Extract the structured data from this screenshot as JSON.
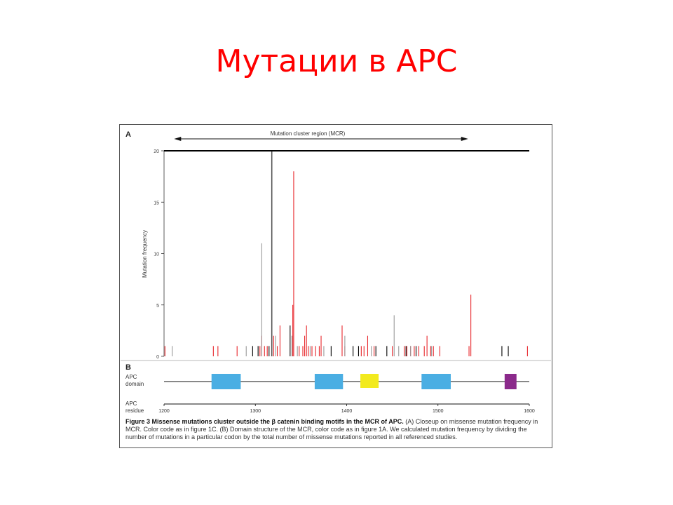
{
  "slide": {
    "title": "Мутации в APC"
  },
  "figure": {
    "panel_a_label": "A",
    "panel_b_label": "B",
    "mcr_label": "Mutation cluster region (MCR)",
    "domain_row_label": [
      "APC",
      "domain"
    ],
    "residue_row_label": [
      "APC",
      "residue"
    ],
    "caption_bold": "Figure 3 Missense mutations cluster outside the β catenin binding motifs in the MCR of APC.",
    "caption_text": " (A) Closeup on missense mutation frequency in MCR. Color code as in figure 1C. (B) Domain structure of the MCR, color code as in figure 1A. We calculated mutation frequency by dividing the number of mutations in a particular codon by the total number of missense mutations reported in all referenced studies."
  },
  "colors": {
    "title": "#ff0000",
    "red": "#e8262b",
    "gray": "#999999",
    "dark": "#555555",
    "black": "#000000",
    "blue": "#4aaee3",
    "yellow": "#f2ea1e",
    "purple": "#8b2a8b"
  },
  "chart_data": {
    "type": "bar",
    "ylabel": "Mutation frequency",
    "xlim": [
      1200,
      1600
    ],
    "ylim": [
      0,
      20
    ],
    "yticks": [
      0,
      5,
      10,
      15,
      20
    ],
    "xticks": [
      1200,
      1300,
      1400,
      1500,
      1600
    ],
    "series": [
      {
        "color": "red",
        "points": [
          [
            1201,
            1
          ],
          [
            1254,
            1
          ],
          [
            1259,
            1
          ],
          [
            1280,
            1
          ],
          [
            1305,
            1
          ],
          [
            1307,
            2
          ],
          [
            1310,
            1
          ],
          [
            1313,
            1
          ],
          [
            1320,
            2
          ],
          [
            1324,
            1
          ],
          [
            1327,
            3
          ],
          [
            1341,
            5
          ],
          [
            1342,
            18
          ],
          [
            1348,
            1
          ],
          [
            1352,
            1
          ],
          [
            1354,
            2
          ],
          [
            1356,
            3
          ],
          [
            1358,
            1
          ],
          [
            1362,
            1
          ],
          [
            1366,
            1
          ],
          [
            1370,
            1
          ],
          [
            1372,
            2
          ],
          [
            1395,
            3
          ],
          [
            1398,
            1
          ],
          [
            1416,
            1
          ],
          [
            1419,
            1
          ],
          [
            1423,
            2
          ],
          [
            1430,
            1
          ],
          [
            1450,
            1
          ],
          [
            1463,
            1
          ],
          [
            1466,
            1
          ],
          [
            1470,
            1
          ],
          [
            1474,
            1
          ],
          [
            1479,
            1
          ],
          [
            1485,
            1
          ],
          [
            1488,
            2
          ],
          [
            1492,
            1
          ],
          [
            1495,
            1
          ],
          [
            1502,
            1
          ],
          [
            1534,
            1
          ],
          [
            1536,
            6
          ],
          [
            1598,
            1
          ]
        ]
      },
      {
        "color": "gray",
        "points": [
          [
            1209,
            1
          ],
          [
            1290,
            1
          ],
          [
            1307,
            11
          ],
          [
            1322,
            2
          ],
          [
            1340,
            2
          ],
          [
            1346,
            1
          ],
          [
            1360,
            1
          ],
          [
            1375,
            1
          ],
          [
            1398,
            2
          ],
          [
            1427,
            1
          ],
          [
            1452,
            4
          ],
          [
            1457,
            1
          ],
          [
            1470,
            1
          ],
          [
            1493,
            1
          ]
        ]
      },
      {
        "color": "dark",
        "points": [
          [
            1318,
            20
          ],
          [
            1338,
            3
          ]
        ]
      },
      {
        "color": "black",
        "points": [
          [
            1297,
            1
          ],
          [
            1303,
            1
          ],
          [
            1315,
            1
          ],
          [
            1383,
            1
          ],
          [
            1407,
            1
          ],
          [
            1413,
            1
          ],
          [
            1432,
            1
          ],
          [
            1444,
            1
          ],
          [
            1465,
            1
          ],
          [
            1476,
            1
          ],
          [
            1570,
            1
          ],
          [
            1577,
            1
          ]
        ]
      }
    ],
    "domains": [
      {
        "start": 1252,
        "end": 1284,
        "color": "blue"
      },
      {
        "start": 1365,
        "end": 1396,
        "color": "blue"
      },
      {
        "start": 1415,
        "end": 1435,
        "color": "yellow"
      },
      {
        "start": 1482,
        "end": 1514,
        "color": "blue"
      },
      {
        "start": 1573,
        "end": 1586,
        "color": "purple"
      }
    ],
    "mcr": {
      "start": 1211,
      "end": 1533
    }
  }
}
